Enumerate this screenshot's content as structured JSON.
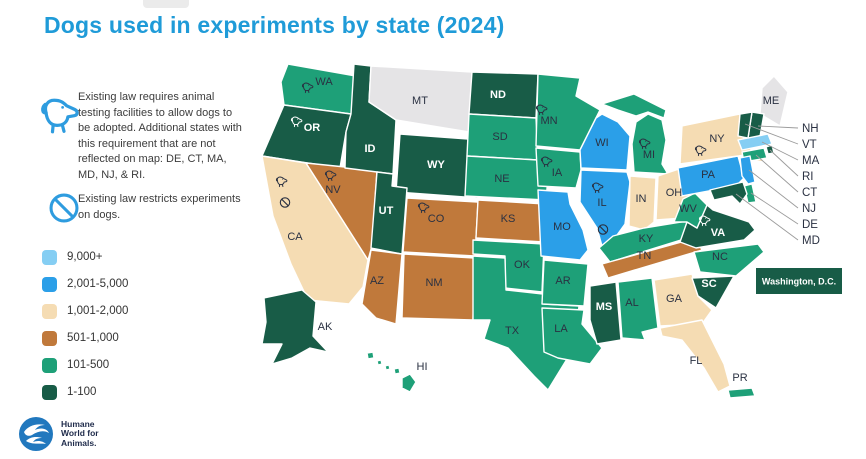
{
  "title": "Dogs used in experiments by state (2024)",
  "title_color": "#1f9bd8",
  "notes": {
    "adoption": "Existing law requires animal testing facilities to allow dogs to be adopted. Additional states with this requirement that are not reflected on map: DE, CT, MA, MD, NJ, & RI.",
    "restrict": "Existing law restricts experiments on dogs.",
    "icon_color": "#2e9cdf",
    "icons": [
      "dog-icon",
      "prohibition-icon"
    ]
  },
  "legend": [
    {
      "key": "9000+",
      "label": "9,000+",
      "color": "#85cef3"
    },
    {
      "key": "2001-5000",
      "label": "2,001-5,000",
      "color": "#2b9fe8"
    },
    {
      "key": "1001-2000",
      "label": "1,001-2,000",
      "color": "#f5dcb3"
    },
    {
      "key": "501-1000",
      "label": "501-1,000",
      "color": "#c0793b"
    },
    {
      "key": "101-500",
      "label": "101-500",
      "color": "#1ea078"
    },
    {
      "key": "1-100",
      "label": "1-100",
      "color": "#185c47"
    }
  ],
  "map": {
    "no_data_color": "#e5e4e6",
    "label_dark": "#2a3142",
    "label_light": "#ffffff",
    "dc_label": "Washington, D.C.",
    "dc_category": "1-100",
    "states": [
      {
        "abbr": "WA",
        "category": "101-500",
        "icons": [
          "dog"
        ]
      },
      {
        "abbr": "OR",
        "category": "1-100",
        "icons": [
          "dog"
        ],
        "light": true
      },
      {
        "abbr": "CA",
        "category": "1001-2000",
        "icons": [
          "dog",
          "no"
        ]
      },
      {
        "abbr": "NV",
        "category": "501-1000",
        "icons": [
          "dog"
        ]
      },
      {
        "abbr": "ID",
        "category": "1-100",
        "light": true
      },
      {
        "abbr": "MT",
        "category": "no-data"
      },
      {
        "abbr": "WY",
        "category": "1-100",
        "light": true
      },
      {
        "abbr": "UT",
        "category": "1-100",
        "light": true
      },
      {
        "abbr": "CO",
        "category": "501-1000",
        "icons": [
          "dog"
        ]
      },
      {
        "abbr": "AZ",
        "category": "501-1000"
      },
      {
        "abbr": "NM",
        "category": "501-1000"
      },
      {
        "abbr": "ND",
        "category": "1-100",
        "light": true
      },
      {
        "abbr": "SD",
        "category": "101-500"
      },
      {
        "abbr": "NE",
        "category": "101-500"
      },
      {
        "abbr": "KS",
        "category": "501-1000"
      },
      {
        "abbr": "OK",
        "category": "101-500"
      },
      {
        "abbr": "TX",
        "category": "101-500"
      },
      {
        "abbr": "MN",
        "category": "101-500",
        "icons": [
          "dog"
        ]
      },
      {
        "abbr": "IA",
        "category": "101-500",
        "icons": [
          "dog"
        ]
      },
      {
        "abbr": "MO",
        "category": "2001-5000"
      },
      {
        "abbr": "AR",
        "category": "101-500"
      },
      {
        "abbr": "LA",
        "category": "101-500"
      },
      {
        "abbr": "WI",
        "category": "2001-5000"
      },
      {
        "abbr": "IL",
        "category": "2001-5000",
        "icons": [
          "dog",
          "no"
        ]
      },
      {
        "abbr": "IN",
        "category": "1001-2000"
      },
      {
        "abbr": "MI",
        "category": "101-500",
        "icons": [
          "dog"
        ]
      },
      {
        "abbr": "OH",
        "category": "1001-2000"
      },
      {
        "abbr": "KY",
        "category": "101-500"
      },
      {
        "abbr": "TN",
        "category": "501-1000"
      },
      {
        "abbr": "MS",
        "category": "1-100",
        "light": true
      },
      {
        "abbr": "AL",
        "category": "101-500"
      },
      {
        "abbr": "GA",
        "category": "1001-2000"
      },
      {
        "abbr": "FL",
        "category": "1001-2000"
      },
      {
        "abbr": "SC",
        "category": "1-100",
        "light": true
      },
      {
        "abbr": "NC",
        "category": "101-500"
      },
      {
        "abbr": "VA",
        "category": "1-100",
        "icons": [
          "dog"
        ],
        "light": true
      },
      {
        "abbr": "WV",
        "category": "101-500"
      },
      {
        "abbr": "PA",
        "category": "2001-5000"
      },
      {
        "abbr": "NY",
        "category": "1001-2000",
        "icons": [
          "dog"
        ]
      },
      {
        "abbr": "ME",
        "category": "no-data"
      },
      {
        "abbr": "NH",
        "category": "1-100",
        "callout": true
      },
      {
        "abbr": "VT",
        "category": "1-100",
        "callout": true
      },
      {
        "abbr": "MA",
        "category": "9000+",
        "callout": true
      },
      {
        "abbr": "RI",
        "category": "1-100",
        "callout": true
      },
      {
        "abbr": "CT",
        "category": "101-500",
        "callout": true
      },
      {
        "abbr": "NJ",
        "category": "2001-5000",
        "callout": true
      },
      {
        "abbr": "DE",
        "category": "101-500",
        "callout": true
      },
      {
        "abbr": "MD",
        "category": "1-100",
        "callout": true
      },
      {
        "abbr": "AK",
        "category": "1-100"
      },
      {
        "abbr": "HI",
        "category": "101-500"
      },
      {
        "abbr": "PR",
        "category": "101-500"
      }
    ]
  },
  "logo": {
    "lines": [
      "Humane",
      "World for",
      "Animals."
    ],
    "circle_color": "#2178be"
  }
}
